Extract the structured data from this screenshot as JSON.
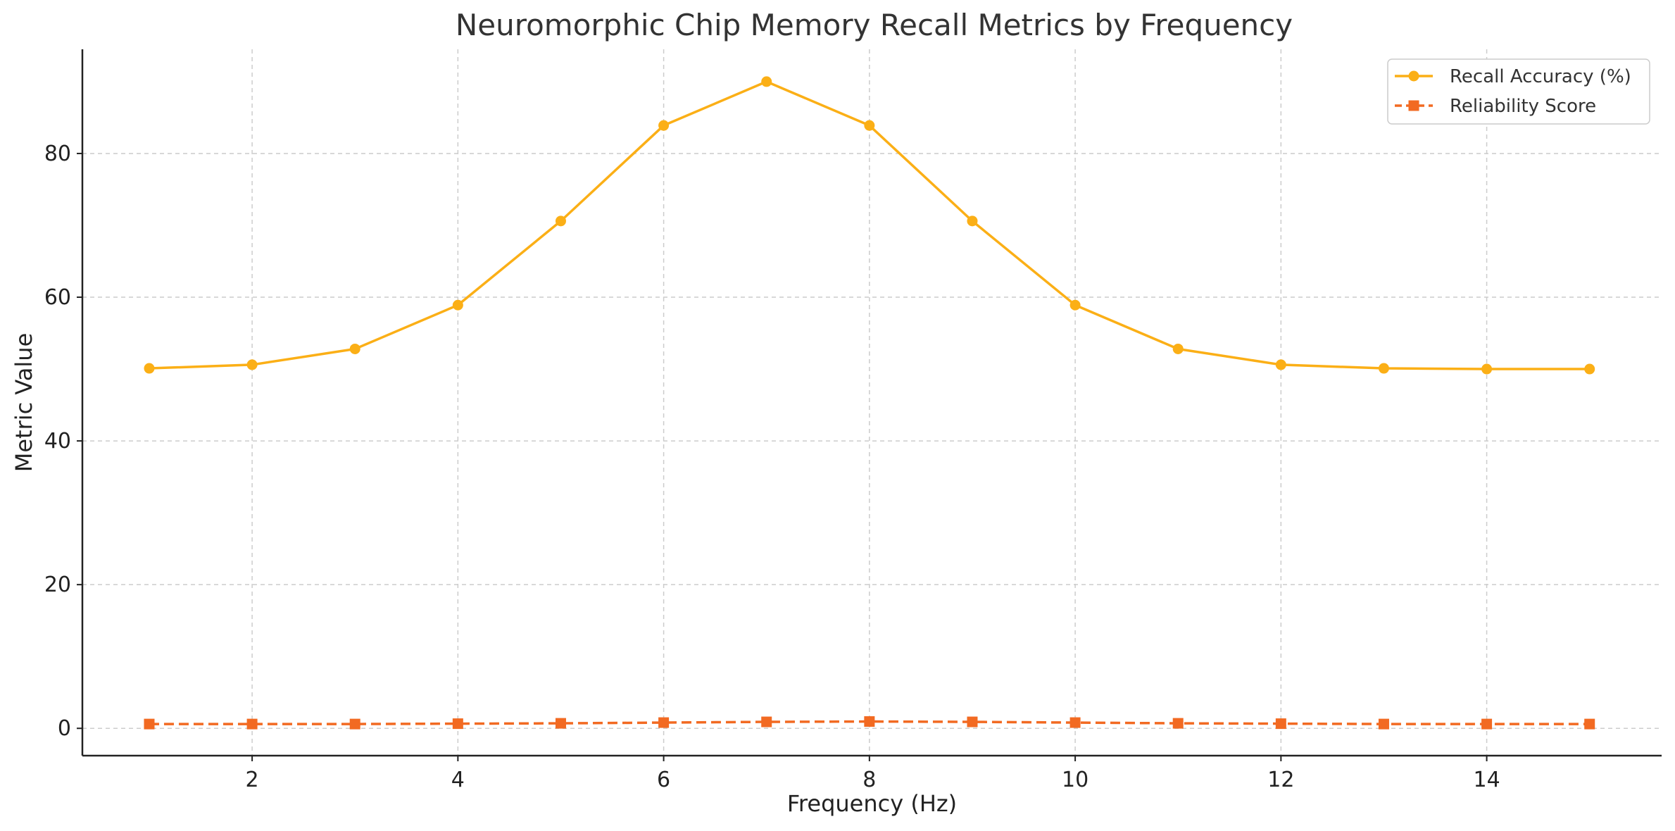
{
  "chart_data": {
    "type": "line",
    "title": "Neuromorphic Chip Memory Recall Metrics by Frequency",
    "xlabel": "Frequency (Hz)",
    "ylabel": "Metric Value",
    "xlim": [
      0.35,
      15.7
    ],
    "ylim": [
      -3.8,
      94.5
    ],
    "xticks": [
      2,
      4,
      6,
      8,
      10,
      12,
      14
    ],
    "yticks": [
      0,
      20,
      40,
      60,
      80
    ],
    "grid": true,
    "legend_position": "top-right",
    "x": [
      1,
      2,
      3,
      4,
      5,
      6,
      7,
      8,
      9,
      10,
      11,
      12,
      13,
      14,
      15
    ],
    "series": [
      {
        "name": "Recall Accuracy (%)",
        "color": "#FBAF16",
        "marker": "circle",
        "linestyle": "solid",
        "values": [
          50.1,
          50.6,
          52.8,
          58.9,
          70.6,
          83.9,
          90.0,
          83.9,
          70.6,
          58.9,
          52.8,
          50.6,
          50.1,
          50.0,
          50.0
        ]
      },
      {
        "name": "Reliability Score",
        "color": "#F26A22",
        "marker": "square",
        "linestyle": "dashed",
        "values": [
          0.6,
          0.6,
          0.6,
          0.65,
          0.7,
          0.8,
          0.9,
          0.95,
          0.9,
          0.8,
          0.7,
          0.65,
          0.6,
          0.6,
          0.6
        ]
      }
    ]
  }
}
